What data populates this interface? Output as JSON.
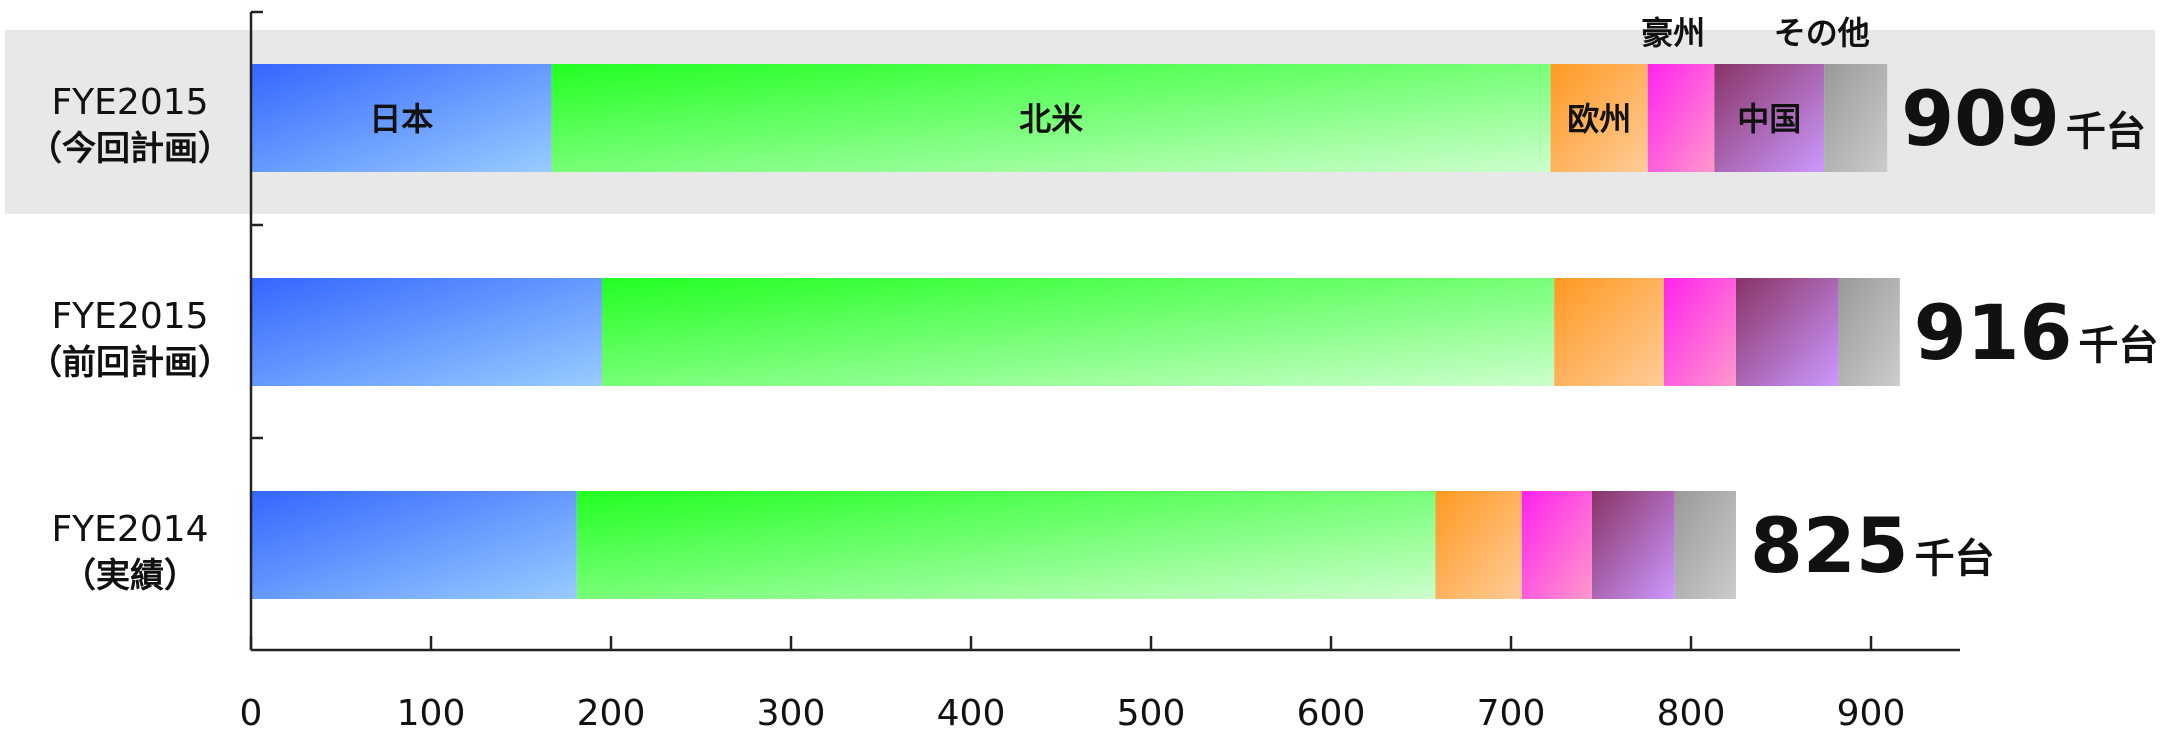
{
  "chart_data": {
    "type": "bar",
    "orientation": "horizontal",
    "stacked": true,
    "categories": [
      {
        "line1": "FYE2015",
        "line2": "（今回計画）",
        "highlight": true
      },
      {
        "line1": "FYE2015",
        "line2": "（前回計画）",
        "highlight": false
      },
      {
        "line1": "FYE2014",
        "line2": "（実績）",
        "highlight": false
      }
    ],
    "series": [
      {
        "name": "日本",
        "color_from": "#3366ff",
        "color_to": "#99ccff",
        "values": [
          167,
          195,
          181
        ]
      },
      {
        "name": "北米",
        "color_from": "#22ff22",
        "color_to": "#ccffcc",
        "values": [
          555,
          529,
          477
        ]
      },
      {
        "name": "欧州",
        "color_from": "#ff9922",
        "color_to": "#ffcc99",
        "values": [
          54,
          61,
          48
        ]
      },
      {
        "name": "豪州",
        "color_from": "#ff22ee",
        "color_to": "#ff99cc",
        "values": [
          37,
          40,
          39
        ]
      },
      {
        "name": "中国",
        "color_from": "#883366",
        "color_to": "#cc99ff",
        "values": [
          61,
          57,
          46
        ]
      },
      {
        "name": "その他",
        "color_from": "#999999",
        "color_to": "#cccccc",
        "values": [
          35,
          34,
          34
        ]
      }
    ],
    "totals": [
      "909",
      "916",
      "825"
    ],
    "total_unit": "千台",
    "xlim": [
      0,
      950
    ],
    "xticks": [
      "0",
      "100",
      "200",
      "300",
      "400",
      "500",
      "600",
      "700",
      "800",
      "900"
    ],
    "grid": false,
    "xlabel": "",
    "ylabel": "",
    "title": ""
  },
  "colors": {
    "highlight_band": "#e8e8e8",
    "axis": "#222222"
  }
}
